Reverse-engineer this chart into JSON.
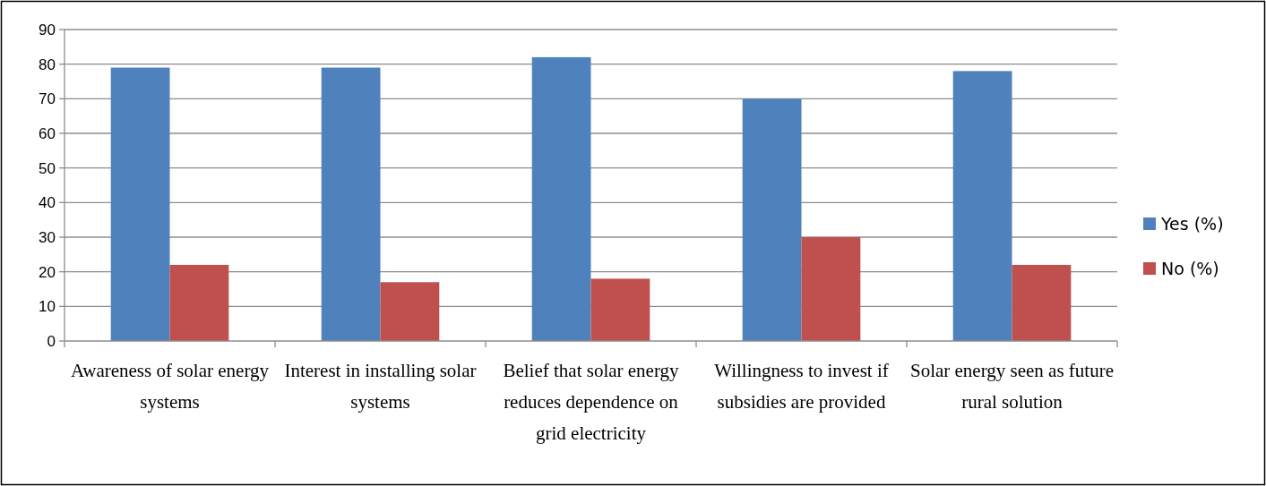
{
  "chart_data": {
    "type": "bar",
    "categories": [
      "Awareness of solar energy systems",
      "Interest in installing solar systems",
      "Belief that solar energy reduces dependence on grid electricity",
      "Willingness to invest if subsidies are provided",
      "Solar energy seen as future rural solution"
    ],
    "series": [
      {
        "name": "Yes (%)",
        "color": "#4f81bd",
        "values": [
          79,
          79,
          82,
          70,
          78
        ]
      },
      {
        "name": "No (%)",
        "color": "#c0504d",
        "values": [
          22,
          17,
          18,
          30,
          22
        ]
      }
    ],
    "ylim": [
      0,
      90
    ],
    "yticks": [
      0,
      10,
      20,
      30,
      40,
      50,
      60,
      70,
      80,
      90
    ],
    "grid": "y",
    "legend": "right"
  }
}
